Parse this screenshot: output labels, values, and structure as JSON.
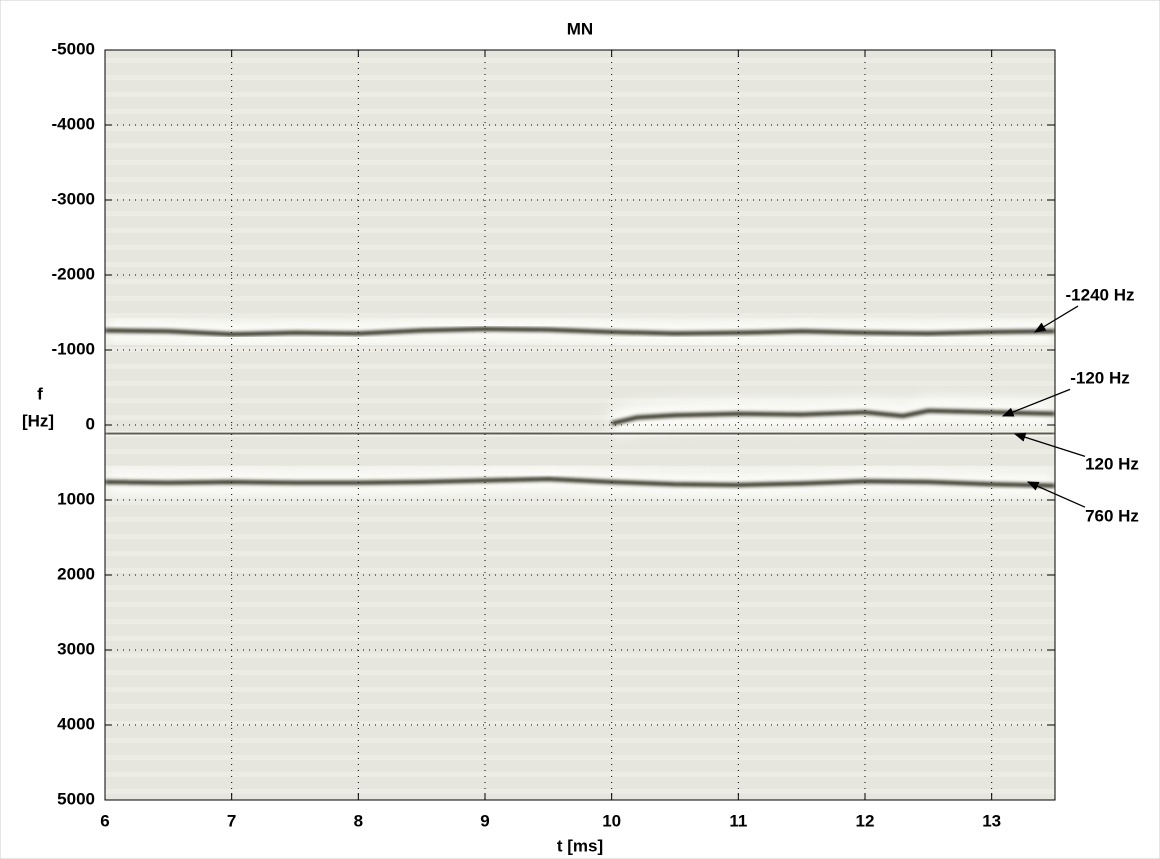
{
  "chart_data": {
    "type": "spectrogram",
    "title": "MN",
    "xlabel": "t [ms]",
    "ylabel": [
      "f",
      "[Hz]"
    ],
    "xlim": [
      6,
      13.5
    ],
    "xticks": [
      6,
      7,
      8,
      9,
      10,
      11,
      12,
      13
    ],
    "ylim": [
      -5000,
      5000
    ],
    "yticks": [
      -5000,
      -4000,
      -3000,
      -2000,
      -1000,
      0,
      1000,
      2000,
      3000,
      4000,
      5000
    ],
    "y_reversed": true,
    "grid": true,
    "background": "#e6e6de",
    "color": "#2b2b1e",
    "ridges": [
      {
        "x": [
          6,
          6.5,
          7,
          7.5,
          8,
          8.5,
          9,
          9.5,
          10,
          10.5,
          11,
          11.5,
          12,
          12.5,
          13,
          13.5
        ],
        "values": [
          -1260,
          -1250,
          -1210,
          -1230,
          -1220,
          -1260,
          -1280,
          -1270,
          -1240,
          -1220,
          -1230,
          -1250,
          -1230,
          -1220,
          -1240,
          -1250
        ]
      },
      {
        "x": [
          10,
          10.2,
          10.5,
          11,
          11.5,
          12,
          12.3,
          12.5,
          13,
          13.5
        ],
        "values": [
          -20,
          -100,
          -130,
          -150,
          -140,
          -170,
          -120,
          -190,
          -170,
          -150
        ]
      },
      {
        "x": [
          6,
          7,
          8,
          9,
          10,
          11,
          12,
          13,
          13.5
        ],
        "values": [
          120,
          120,
          110,
          110,
          120,
          120,
          120,
          120,
          110
        ]
      },
      {
        "x": [
          6,
          6.5,
          7,
          7.5,
          8,
          8.5,
          9,
          9.5,
          10,
          10.5,
          11,
          11.5,
          12,
          12.5,
          13,
          13.5
        ],
        "values": [
          760,
          770,
          760,
          770,
          770,
          760,
          740,
          720,
          760,
          790,
          800,
          780,
          750,
          760,
          790,
          810
        ]
      }
    ],
    "annotations": [
      {
        "text": "-1240 Hz",
        "value": -1240
      },
      {
        "text": "-120 Hz",
        "value": -120
      },
      {
        "text": "120 Hz",
        "value": 120
      },
      {
        "text": "760 Hz",
        "value": 760
      }
    ]
  }
}
